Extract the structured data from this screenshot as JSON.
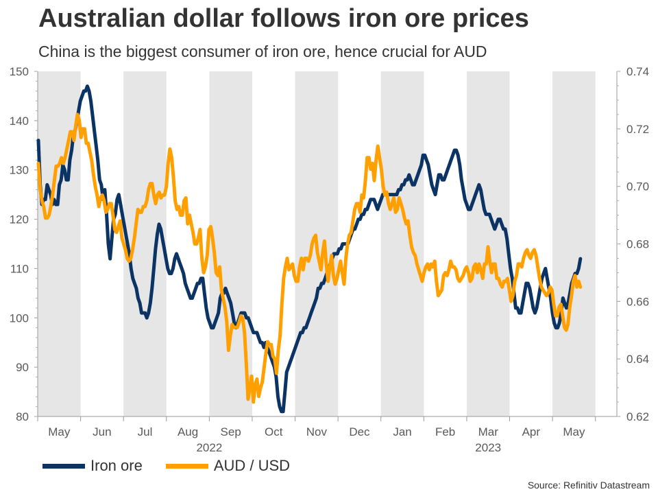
{
  "chart_data": {
    "type": "line",
    "title": "Australian dollar follows iron ore prices",
    "subtitle": "China is the biggest consumer of iron ore, hence crucial for AUD",
    "source": "Source: Refinitiv Datastream",
    "months": [
      "May",
      "Jun",
      "Jul",
      "Aug",
      "Sep",
      "Oct",
      "Nov",
      "Dec",
      "Jan",
      "Feb",
      "Mar",
      "Apr",
      "May"
    ],
    "years": [
      "2022",
      "2023"
    ],
    "shaded_months": [
      "May",
      "Jul",
      "Sep",
      "Nov",
      "Jan",
      "Mar",
      "May"
    ],
    "left_axis": {
      "label": "Iron ore",
      "ylim": [
        80,
        150
      ],
      "ticks": [
        "150",
        "140",
        "130",
        "120",
        "110",
        "100",
        "90",
        "80"
      ]
    },
    "right_axis": {
      "label": "AUD / USD",
      "ylim": [
        0.62,
        0.74
      ],
      "ticks": [
        "0.74",
        "0.72",
        "0.70",
        "0.68",
        "0.66",
        "0.64",
        "0.62"
      ]
    },
    "series": [
      {
        "name": "Iron ore",
        "color": "#0b3364",
        "axis": "left",
        "values": [
          136,
          127,
          123,
          124,
          124,
          127,
          126,
          125,
          123,
          124,
          123,
          123,
          127,
          128,
          131,
          130,
          128,
          128,
          132,
          134,
          137,
          138,
          140,
          142,
          144,
          145,
          146,
          146,
          147,
          146,
          144,
          141,
          138,
          135,
          132,
          128,
          127,
          124,
          126,
          121,
          115,
          112,
          116,
          120,
          121,
          124,
          125,
          123,
          121,
          119,
          117,
          115,
          113,
          110,
          108,
          107,
          106,
          104,
          103,
          101,
          101,
          101,
          100,
          101,
          103,
          106,
          110,
          114,
          117,
          119,
          118,
          116,
          114,
          112,
          110,
          109,
          109,
          110,
          112,
          113,
          112,
          111,
          110,
          109,
          107,
          106,
          105,
          104,
          104,
          105,
          106,
          107,
          107,
          108,
          108,
          105,
          102,
          100,
          99,
          98,
          98,
          99,
          100,
          101,
          104,
          105,
          105,
          106,
          105,
          104,
          103,
          101,
          99,
          98,
          99,
          100,
          101,
          101,
          101,
          100,
          100,
          99,
          98,
          97,
          97,
          97,
          96,
          95,
          95,
          94,
          95,
          94,
          93,
          92,
          91,
          90,
          88,
          84,
          82,
          81,
          81,
          85,
          89,
          90,
          91,
          92,
          93,
          94,
          95,
          96,
          97,
          97,
          98,
          98,
          99,
          100,
          101,
          102,
          103,
          104,
          106,
          106,
          107,
          107,
          108,
          109,
          110,
          111,
          112,
          113,
          113,
          113,
          114,
          114,
          115,
          115,
          115,
          115,
          116,
          117,
          118,
          118,
          119,
          120,
          120,
          121,
          121,
          122,
          122,
          123,
          124,
          124,
          124,
          123,
          122,
          123,
          124,
          125,
          125,
          125,
          125,
          125,
          125,
          125,
          125,
          125,
          126,
          126,
          127,
          127,
          128,
          128,
          129,
          128,
          127,
          127,
          128,
          129,
          130,
          131,
          133,
          133,
          132,
          131,
          129,
          127,
          126,
          125,
          127,
          129,
          129,
          128,
          128,
          129,
          130,
          131,
          132,
          133,
          134,
          134,
          133,
          131,
          128,
          126,
          124,
          123,
          122,
          122,
          123,
          124,
          125,
          126,
          127,
          126,
          124,
          122,
          121,
          121,
          121,
          120,
          119,
          118,
          119,
          120,
          120,
          119,
          118,
          118,
          116,
          113,
          110,
          108,
          105,
          102,
          102,
          101,
          101,
          103,
          105,
          107,
          107,
          106,
          104,
          102,
          101,
          102,
          104,
          106,
          108,
          109,
          110,
          108,
          106,
          104,
          101,
          99,
          98,
          98,
          99,
          101,
          104,
          103,
          102,
          103,
          105,
          107,
          108,
          109,
          109,
          110,
          112
        ]
      },
      {
        "name": "AUD / USD",
        "color": "#ff9f00",
        "axis": "right",
        "values": [
          0.708,
          0.699,
          0.695,
          0.693,
          0.689,
          0.689,
          0.69,
          0.693,
          0.697,
          0.702,
          0.707,
          0.707,
          0.708,
          0.71,
          0.708,
          0.71,
          0.713,
          0.716,
          0.719,
          0.719,
          0.716,
          0.721,
          0.725,
          0.723,
          0.717,
          0.72,
          0.72,
          0.715,
          0.715,
          0.712,
          0.709,
          0.704,
          0.7,
          0.697,
          0.693,
          0.696,
          0.697,
          0.695,
          0.691,
          0.692,
          0.694,
          0.694,
          0.69,
          0.685,
          0.684,
          0.686,
          0.688,
          0.682,
          0.68,
          0.678,
          0.675,
          0.674,
          0.675,
          0.678,
          0.682,
          0.687,
          0.692,
          0.691,
          0.691,
          0.693,
          0.693,
          0.695,
          0.699,
          0.701,
          0.701,
          0.697,
          0.694,
          0.697,
          0.698,
          0.696,
          0.697,
          0.697,
          0.7,
          0.708,
          0.713,
          0.71,
          0.703,
          0.695,
          0.692,
          0.693,
          0.69,
          0.69,
          0.695,
          0.696,
          0.687,
          0.69,
          0.687,
          0.684,
          0.68,
          0.68,
          0.682,
          0.685,
          0.675,
          0.67,
          0.672,
          0.676,
          0.685,
          0.686,
          0.682,
          0.677,
          0.67,
          0.669,
          0.672,
          0.664,
          0.661,
          0.658,
          0.653,
          0.643,
          0.648,
          0.652,
          0.651,
          0.651,
          0.651,
          0.653,
          0.655,
          0.654,
          0.649,
          0.638,
          0.626,
          0.63,
          0.634,
          0.625,
          0.631,
          0.633,
          0.627,
          0.63,
          0.632,
          0.637,
          0.642,
          0.646,
          0.645,
          0.645,
          0.641,
          0.64,
          0.635,
          0.643,
          0.648,
          0.659,
          0.668,
          0.672,
          0.675,
          0.671,
          0.672,
          0.673,
          0.669,
          0.667,
          0.667,
          0.672,
          0.675,
          0.671,
          0.675,
          0.675,
          0.674,
          0.676,
          0.68,
          0.682,
          0.683,
          0.677,
          0.674,
          0.671,
          0.677,
          0.681,
          0.673,
          0.667,
          0.672,
          0.676,
          0.669,
          0.666,
          0.668,
          0.671,
          0.674,
          0.67,
          0.666,
          0.675,
          0.68,
          0.683,
          0.684,
          0.688,
          0.692,
          0.694,
          0.694,
          0.691,
          0.697,
          0.696,
          0.702,
          0.71,
          0.71,
          0.706,
          0.708,
          0.702,
          0.709,
          0.714,
          0.71,
          0.706,
          0.7,
          0.697,
          0.698,
          0.694,
          0.692,
          0.694,
          0.696,
          0.691,
          0.692,
          0.696,
          0.694,
          0.692,
          0.689,
          0.687,
          0.688,
          0.683,
          0.679,
          0.677,
          0.676,
          0.673,
          0.671,
          0.669,
          0.667,
          0.67,
          0.672,
          0.673,
          0.671,
          0.673,
          0.672,
          0.674,
          0.667,
          0.662,
          0.663,
          0.664,
          0.669,
          0.67,
          0.669,
          0.671,
          0.674,
          0.672,
          0.672,
          0.671,
          0.668,
          0.667,
          0.668,
          0.669,
          0.671,
          0.672,
          0.67,
          0.667,
          0.668,
          0.672,
          0.673,
          0.67,
          0.673,
          0.671,
          0.668,
          0.673,
          0.673,
          0.679,
          0.674,
          0.67,
          0.673,
          0.673,
          0.668,
          0.668,
          0.666,
          0.665,
          0.667,
          0.667,
          0.668,
          0.664,
          0.66,
          0.662,
          0.667,
          0.669,
          0.673,
          0.673,
          0.672,
          0.675,
          0.677,
          0.678,
          0.676,
          0.675,
          0.677,
          0.678,
          0.676,
          0.672,
          0.668,
          0.665,
          0.664,
          0.663,
          0.662,
          0.663,
          0.665,
          0.664,
          0.659,
          0.655,
          0.655,
          0.658,
          0.659,
          0.655,
          0.651,
          0.65,
          0.652,
          0.658,
          0.662,
          0.667,
          0.669,
          0.665,
          0.667,
          0.665
        ]
      }
    ]
  }
}
